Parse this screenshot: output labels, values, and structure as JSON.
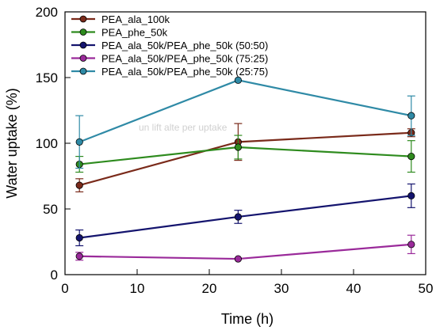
{
  "chart_data": {
    "type": "line",
    "title": "",
    "xlabel": "Time (h)",
    "ylabel": "Water uptake (%)",
    "xlim": [
      0,
      50
    ],
    "ylim": [
      0,
      200
    ],
    "xticks": [
      0,
      10,
      20,
      30,
      40,
      50
    ],
    "yticks": [
      0,
      50,
      100,
      150,
      200
    ],
    "grid": false,
    "legend_position": "top-left",
    "x": [
      2,
      24,
      48
    ],
    "series": [
      {
        "name": "PEA_ala_100k",
        "color": "#7a2a1a",
        "values": [
          68,
          101,
          108
        ],
        "errors": [
          5,
          14,
          3
        ]
      },
      {
        "name": "PEA_phe_50k",
        "color": "#2e8b1e",
        "values": [
          84,
          97,
          90
        ],
        "errors": [
          6,
          9,
          12
        ]
      },
      {
        "name": "PEA_ala_50k/PEA_phe_50k (50:50)",
        "color": "#14146e",
        "values": [
          28,
          44,
          60
        ],
        "errors": [
          6,
          5,
          9
        ]
      },
      {
        "name": "PEA_ala_50k/PEA_phe_50k (75:25)",
        "color": "#9a2a9a",
        "values": [
          14,
          12,
          23
        ],
        "errors": [
          3,
          0,
          7
        ]
      },
      {
        "name": "PEA_ala_50k/PEA_phe_50k (25:75)",
        "color": "#2f8aa6",
        "values": [
          101,
          148,
          121
        ],
        "errors": [
          20,
          0,
          15
        ]
      }
    ],
    "faint_overlay_text": "un lift alte per uptake"
  }
}
